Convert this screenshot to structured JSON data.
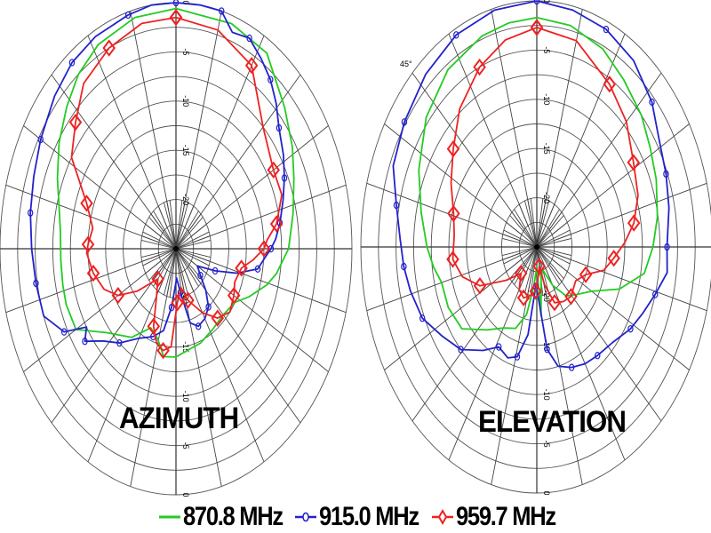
{
  "chart_data": {
    "type": "polar",
    "units": "dB",
    "radial_range": [
      -25,
      0
    ],
    "radial_ticks": [
      0,
      -5,
      -10,
      -15,
      -20
    ],
    "angle_convention": "0 deg at top, clockwise",
    "grid": true,
    "legend_position": "bottom",
    "series_meta": [
      {
        "name": "870.8 MHz",
        "color": "#22cc22",
        "marker": "none"
      },
      {
        "name": "915.0 MHz",
        "color": "#2222cc",
        "marker": "circle"
      },
      {
        "name": "959.7 MHz",
        "color": "#ee2222",
        "marker": "diamond"
      }
    ],
    "plots": [
      {
        "title": "AZIMUTH",
        "annotations": [],
        "series": [
          {
            "name": "870.8 MHz",
            "points": [
              [
                0,
                -0.6
              ],
              [
                19,
                -0.8
              ],
              [
                33,
                -1.3
              ],
              [
                47,
                -3.9
              ],
              [
                58,
                -5.5
              ],
              [
                67,
                -6.8
              ],
              [
                78,
                -8
              ],
              [
                90,
                -9
              ],
              [
                100,
                -10.5
              ],
              [
                106,
                -11.6
              ],
              [
                115,
                -13.5
              ],
              [
                123,
                -15
              ],
              [
                135,
                -15.5
              ],
              [
                147,
                -15.3
              ],
              [
                160,
                -14.8
              ],
              [
                172,
                -14.5
              ],
              [
                180,
                -14
              ],
              [
                189,
                -13.9
              ],
              [
                196,
                -15.5
              ],
              [
                204,
                -16.2
              ],
              [
                215,
                -14
              ],
              [
                229,
                -12
              ],
              [
                240,
                -8.6
              ],
              [
                250,
                -8.4
              ],
              [
                257,
                -8.5
              ],
              [
                266,
                -8.6
              ],
              [
                276,
                -8.5
              ],
              [
                285,
                -7.8
              ],
              [
                293,
                -6.7
              ],
              [
                303,
                -5.2
              ],
              [
                313,
                -3.8
              ],
              [
                322,
                -2.5
              ],
              [
                332,
                -1.5
              ],
              [
                346,
                -0.8
              ],
              [
                360,
                -0.6
              ]
            ]
          },
          {
            "name": "915.0 MHz",
            "points": [
              [
                0,
                0
              ],
              [
                8,
                0
              ],
              [
                15,
                0
              ],
              [
                20,
                -1.6
              ],
              [
                26,
                -1.2
              ],
              [
                32,
                -2.2
              ],
              [
                38,
                -3.2
              ],
              [
                44,
                -4.5
              ],
              [
                50,
                -5.9
              ],
              [
                58,
                -7
              ],
              [
                65,
                -8
              ],
              [
                72,
                -9
              ],
              [
                80,
                -10
              ],
              [
                86,
                -10.8
              ],
              [
                90,
                -11.5
              ],
              [
                94,
                -12.3
              ],
              [
                100,
                -13.2
              ],
              [
                106,
                -16
              ],
              [
                112,
                -19
              ],
              [
                120,
                -21.5
              ],
              [
                128,
                -20.6
              ],
              [
                135,
                -19
              ],
              [
                142,
                -17.5
              ],
              [
                150,
                -16.8
              ],
              [
                158,
                -16.5
              ],
              [
                165,
                -17.2
              ],
              [
                172,
                -20.5
              ],
              [
                178,
                -22
              ],
              [
                186,
                -19
              ],
              [
                192,
                -16.5
              ],
              [
                200,
                -15.5
              ],
              [
                210,
                -14.5
              ],
              [
                220,
                -12.5
              ],
              [
                228,
                -11
              ],
              [
                234,
                -9
              ],
              [
                238,
                -10
              ],
              [
                242,
                -7
              ],
              [
                250,
                -5
              ],
              [
                260,
                -4.8
              ],
              [
                270,
                -4.5
              ],
              [
                280,
                -4
              ],
              [
                290,
                -3.5
              ],
              [
                300,
                -2.8
              ],
              [
                312,
                -1.8
              ],
              [
                322,
                -1
              ],
              [
                332,
                -0.6
              ],
              [
                344,
                -0.3
              ],
              [
                352,
                0
              ],
              [
                360,
                0
              ]
            ]
          },
          {
            "name": "959.7 MHz",
            "points": [
              [
                0,
                -1.5
              ],
              [
                15,
                -2
              ],
              [
                30,
                -3.5
              ],
              [
                45,
                -7.5
              ],
              [
                60,
                -9
              ],
              [
                70,
                -9
              ],
              [
                80,
                -10.5
              ],
              [
                86,
                -12
              ],
              [
                90,
                -12.5
              ],
              [
                96,
                -14
              ],
              [
                102,
                -15.5
              ],
              [
                112,
                -16
              ],
              [
                120,
                -15.5
              ],
              [
                130,
                -15
              ],
              [
                140,
                -15.8
              ],
              [
                150,
                -17.5
              ],
              [
                162,
                -19.5
              ],
              [
                170,
                -21
              ],
              [
                178,
                -19.5
              ],
              [
                184,
                -15
              ],
              [
                190,
                -14.5
              ],
              [
                196,
                -15
              ],
              [
                202,
                -16.5
              ],
              [
                210,
                -19.5
              ],
              [
                220,
                -21
              ],
              [
                232,
                -18
              ],
              [
                240,
                -15.5
              ],
              [
                248,
                -14
              ],
              [
                258,
                -13
              ],
              [
                268,
                -12.3
              ],
              [
                272,
                -12.5
              ],
              [
                280,
                -13
              ],
              [
                290,
                -11.5
              ],
              [
                302,
                -7.5
              ],
              [
                312,
                -5.8
              ],
              [
                322,
                -3.7
              ],
              [
                335,
                -2.5
              ],
              [
                348,
                -1.6
              ],
              [
                360,
                -1.5
              ]
            ]
          }
        ]
      },
      {
        "title": "ELEVATION",
        "annotations": [
          "45°"
        ],
        "series": [
          {
            "name": "870.8 MHz",
            "points": [
              [
                0,
                -1.7
              ],
              [
                12,
                -2
              ],
              [
                25,
                -2.8
              ],
              [
                36,
                -4
              ],
              [
                48,
                -5
              ],
              [
                58,
                -6
              ],
              [
                68,
                -6.7
              ],
              [
                80,
                -7.6
              ],
              [
                90,
                -8.5
              ],
              [
                100,
                -9.5
              ],
              [
                110,
                -12.5
              ],
              [
                120,
                -16
              ],
              [
                130,
                -17.5
              ],
              [
                140,
                -18.5
              ],
              [
                150,
                -20.5
              ],
              [
                160,
                -22.5
              ],
              [
                168,
                -22
              ],
              [
                175,
                -18
              ],
              [
                180,
                -23
              ],
              [
                186,
                -21
              ],
              [
                192,
                -18
              ],
              [
                200,
                -16.2
              ],
              [
                210,
                -15.5
              ],
              [
                220,
                -14
              ],
              [
                232,
                -11.5
              ],
              [
                244,
                -11
              ],
              [
                255,
                -11
              ],
              [
                262,
                -10.2
              ],
              [
                270,
                -9.4
              ],
              [
                282,
                -8.2
              ],
              [
                295,
                -6.5
              ],
              [
                310,
                -4.5
              ],
              [
                325,
                -3
              ],
              [
                340,
                -2.2
              ],
              [
                350,
                -1.9
              ],
              [
                360,
                -1.7
              ]
            ]
          },
          {
            "name": "915.0 MHz",
            "points": [
              [
                0,
                0
              ],
              [
                12,
                -0.4
              ],
              [
                24,
                -0.8
              ],
              [
                36,
                -1.6
              ],
              [
                48,
                -3
              ],
              [
                58,
                -4.5
              ],
              [
                68,
                -5.2
              ],
              [
                78,
                -5.8
              ],
              [
                90,
                -6.5
              ],
              [
                98,
                -6.3
              ],
              [
                106,
                -7.5
              ],
              [
                114,
                -8.5
              ],
              [
                122,
                -9.3
              ],
              [
                132,
                -10.5
              ],
              [
                142,
                -11
              ],
              [
                150,
                -11.3
              ],
              [
                158,
                -11.8
              ],
              [
                166,
                -12.5
              ],
              [
                172,
                -14.5
              ],
              [
                178,
                -20
              ],
              [
                182,
                -21
              ],
              [
                188,
                -16
              ],
              [
                194,
                -13.5
              ],
              [
                200,
                -13
              ],
              [
                208,
                -13.5
              ],
              [
                216,
                -12
              ],
              [
                226,
                -10
              ],
              [
                236,
                -8.8
              ],
              [
                246,
                -7.2
              ],
              [
                256,
                -6.5
              ],
              [
                264,
                -6
              ],
              [
                272,
                -5.6
              ],
              [
                282,
                -4.6
              ],
              [
                292,
                -3
              ],
              [
                304,
                -2.3
              ],
              [
                318,
                -1.4
              ],
              [
                332,
                -0.6
              ],
              [
                346,
                -0.2
              ],
              [
                360,
                0
              ]
            ]
          },
          {
            "name": "959.7 MHz",
            "points": [
              [
                0,
                -2.7
              ],
              [
                15,
                -3.3
              ],
              [
                32,
                -5.5
              ],
              [
                45,
                -7
              ],
              [
                58,
                -8.8
              ],
              [
                70,
                -9.7
              ],
              [
                80,
                -11
              ],
              [
                88,
                -12.5
              ],
              [
                96,
                -14
              ],
              [
                104,
                -15.2
              ],
              [
                112,
                -17.5
              ],
              [
                122,
                -18.5
              ],
              [
                136,
                -18
              ],
              [
                146,
                -18.3
              ],
              [
                156,
                -18.8
              ],
              [
                164,
                -21
              ],
              [
                170,
                -23
              ],
              [
                176,
                -22
              ],
              [
                182,
                -20.5
              ],
              [
                190,
                -20
              ],
              [
                200,
                -19.5
              ],
              [
                210,
                -20
              ],
              [
                220,
                -21.5
              ],
              [
                232,
                -19.5
              ],
              [
                244,
                -16
              ],
              [
                254,
                -14
              ],
              [
                264,
                -13
              ],
              [
                276,
                -13.2
              ],
              [
                286,
                -12.7
              ],
              [
                298,
                -11.2
              ],
              [
                310,
                -9.5
              ],
              [
                322,
                -7.2
              ],
              [
                336,
                -5
              ],
              [
                348,
                -3.5
              ],
              [
                360,
                -2.7
              ]
            ]
          }
        ]
      }
    ]
  },
  "titles": {
    "azimuth": "AZIMUTH",
    "elevation": "ELEVATION"
  },
  "annotation_45": "45°",
  "legend": [
    {
      "label": "870.8 MHz",
      "color": "#22cc22",
      "marker": "none"
    },
    {
      "label": "915.0 MHz",
      "color": "#2222cc",
      "marker": "circle"
    },
    {
      "label": "959.7 MHz",
      "color": "#ee2222",
      "marker": "diamond"
    }
  ]
}
